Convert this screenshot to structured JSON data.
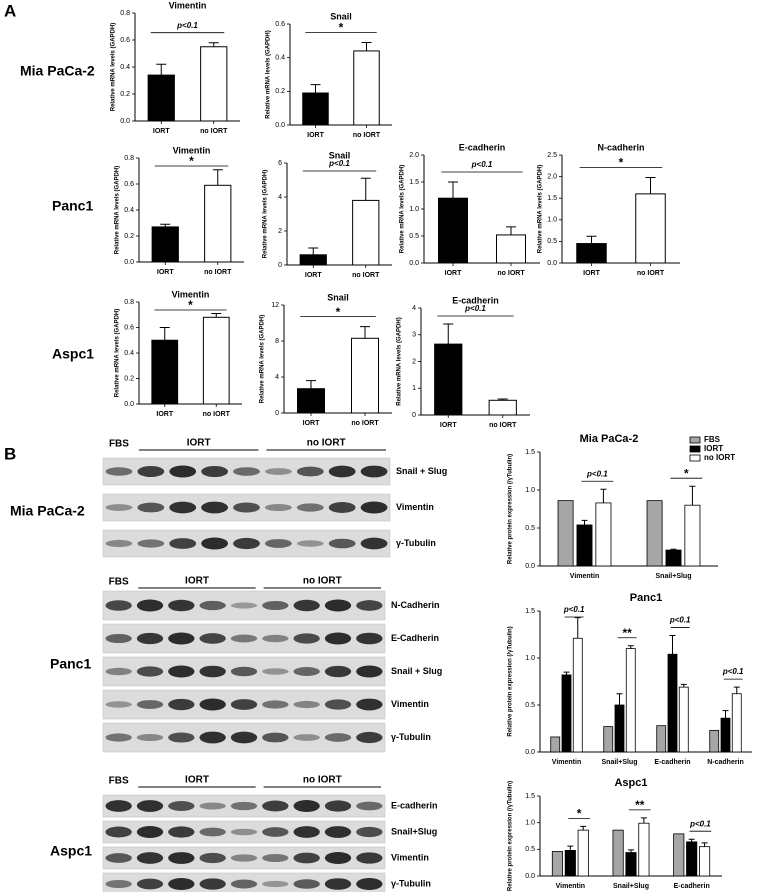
{
  "panel_a": {
    "label": "A",
    "rows": [
      "Mia PaCa-2",
      "Panc1",
      "Aspc1"
    ]
  },
  "panel_b": {
    "label": "B",
    "blots": [
      {
        "cell_line": "Mia PaCa-2",
        "fbs": "FBS",
        "groups": [
          "IORT",
          "no IORT"
        ],
        "bands": [
          "Snail + Slug",
          "Vimentin",
          "γ-Tubulin"
        ]
      },
      {
        "cell_line": "Panc1",
        "fbs": "FBS",
        "groups": [
          "IORT",
          "no IORT"
        ],
        "bands": [
          "N-Cadherin",
          "E-Cadherin",
          "Snail + Slug",
          "Vimentin",
          "γ-Tubulin"
        ]
      },
      {
        "cell_line": "Aspc1",
        "fbs": "FBS",
        "groups": [
          "IORT",
          "no IORT"
        ],
        "bands": [
          "E-cadherin",
          "Snail+Slug",
          "Vimentin",
          "γ-Tubulin"
        ]
      }
    ]
  },
  "chart_data": [
    {
      "type": "bar",
      "title": "Vimentin",
      "y_label": "Relative mRNA levels (GAPDH)",
      "categories": [
        "IORT",
        "no IORT"
      ],
      "values": [
        0.34,
        0.55
      ],
      "errors": [
        0.08,
        0.03
      ],
      "colors": [
        "#000000",
        "#ffffff"
      ],
      "annotation": "p<0.1",
      "ylim": [
        0,
        0.8
      ],
      "yticks": [
        {
          "value": 0,
          "label": "0.0"
        },
        0.2,
        0.4,
        0.6,
        0.8
      ]
    },
    {
      "type": "bar",
      "title": "Snail",
      "y_label": "Relative mRNA levels (GAPDH)",
      "categories": [
        "IORT",
        "no IORT"
      ],
      "values": [
        0.19,
        0.44
      ],
      "errors": [
        0.05,
        0.05
      ],
      "colors": [
        "#000000",
        "#ffffff"
      ],
      "annotation": "*",
      "ylim": [
        0,
        0.6
      ],
      "yticks": [
        {
          "value": 0,
          "label": "0.0"
        },
        0.2,
        0.4,
        0.6
      ]
    },
    {
      "type": "bar",
      "title": "Vimentin",
      "y_label": "Relative mRNA levels (GAPDH)",
      "categories": [
        "IORT",
        "no IORT"
      ],
      "values": [
        0.27,
        0.59
      ],
      "errors": [
        0.02,
        0.12
      ],
      "colors": [
        "#000000",
        "#ffffff"
      ],
      "annotation": "*",
      "ylim": [
        0,
        0.8
      ],
      "yticks": [
        {
          "value": 0,
          "label": "0.0"
        },
        0.2,
        0.4,
        0.6,
        0.8
      ]
    },
    {
      "type": "bar",
      "title": "Snail",
      "y_label": "Relative mRNA levels (GAPDH)",
      "categories": [
        "IORT",
        "no IORT"
      ],
      "values": [
        0.6,
        3.8
      ],
      "errors": [
        0.4,
        1.3
      ],
      "colors": [
        "#000000",
        "#ffffff"
      ],
      "annotation": "p<0.1",
      "ylim": [
        0,
        6
      ],
      "yticks": [
        0,
        2,
        4,
        6
      ]
    },
    {
      "type": "bar",
      "title": "E-cadherin",
      "y_label": "Relative mRNA levels (GAPDH)",
      "categories": [
        "IORT",
        "no IORT"
      ],
      "values": [
        1.2,
        0.52
      ],
      "errors": [
        0.3,
        0.15
      ],
      "colors": [
        "#000000",
        "#ffffff"
      ],
      "annotation": "p<0.1",
      "ylim": [
        0,
        2
      ],
      "yticks": [
        {
          "value": 0,
          "label": "0.0"
        },
        0.5,
        {
          "value": 1,
          "label": "1.0"
        },
        1.5,
        {
          "value": 2,
          "label": "2.0"
        }
      ]
    },
    {
      "type": "bar",
      "title": "N-cadherin",
      "y_label": "Relative mRNA levels (GAPDH)",
      "categories": [
        "IORT",
        "no IORT"
      ],
      "values": [
        0.45,
        1.6
      ],
      "errors": [
        0.17,
        0.38
      ],
      "colors": [
        "#000000",
        "#ffffff"
      ],
      "annotation": "*",
      "ylim": [
        0,
        2.5
      ],
      "yticks": [
        {
          "value": 0,
          "label": "0.0"
        },
        0.5,
        {
          "value": 1,
          "label": "1.0"
        },
        1.5,
        {
          "value": 2,
          "label": "2.0"
        },
        2.5
      ]
    },
    {
      "type": "bar",
      "title": "Vimentin",
      "y_label": "Relative mRNA levels (GAPDH)",
      "categories": [
        "IORT",
        "no IORT"
      ],
      "values": [
        0.5,
        0.68
      ],
      "errors": [
        0.1,
        0.03
      ],
      "colors": [
        "#000000",
        "#ffffff"
      ],
      "annotation": "*",
      "ylim": [
        0,
        0.8
      ],
      "yticks": [
        {
          "value": 0,
          "label": "0.0"
        },
        0.2,
        0.4,
        0.6,
        0.8
      ]
    },
    {
      "type": "bar",
      "title": "Snail",
      "y_label": "Relative mRNA levels (GAPDH)",
      "categories": [
        "IORT",
        "no IORT"
      ],
      "values": [
        2.7,
        8.3
      ],
      "errors": [
        0.9,
        1.3
      ],
      "colors": [
        "#000000",
        "#ffffff"
      ],
      "annotation": "*",
      "ylim": [
        0,
        12
      ],
      "yticks": [
        0,
        4,
        8,
        12
      ]
    },
    {
      "type": "bar",
      "title": "E-cadherin",
      "y_label": "Relative mRNA levels (GAPDH)",
      "categories": [
        "IORT",
        "no IORT"
      ],
      "values": [
        2.65,
        0.55
      ],
      "errors": [
        0.75,
        0.05
      ],
      "colors": [
        "#000000",
        "#ffffff"
      ],
      "annotation": "p<0.1",
      "ylim": [
        0,
        4
      ],
      "yticks": [
        0,
        1,
        2,
        3,
        4
      ]
    },
    {
      "type": "grouped_bar",
      "title": "Mia PaCa-2",
      "y_label": "Relative protein expression (/γTubulin)",
      "categories": [
        "Vimentin",
        "Snail+Slug"
      ],
      "series": [
        {
          "name": "FBS",
          "color": "#a6a6a6",
          "values": [
            0.86,
            0.86
          ]
        },
        {
          "name": "IORT",
          "color": "#000000",
          "values": [
            0.54,
            0.21
          ],
          "errors": [
            0.06,
            0.01
          ]
        },
        {
          "name": "no IORT",
          "color": "#ffffff",
          "values": [
            0.83,
            0.8
          ],
          "errors": [
            0.18,
            0.25
          ]
        }
      ],
      "annotations": [
        "p<0.1",
        "*"
      ],
      "ylim": [
        0,
        1.5
      ],
      "yticks": [
        {
          "value": 0,
          "label": "0.0"
        },
        0.5,
        {
          "value": 1,
          "label": "1.0"
        },
        1.5
      ],
      "legend": "top-right"
    },
    {
      "type": "grouped_bar",
      "title": "Panc1",
      "y_label": "Relative protein expression (/γTubulin)",
      "categories": [
        "Vimentin",
        "Snail+Slug",
        "E-cadherin",
        "N-cadherin"
      ],
      "series": [
        {
          "name": "FBS",
          "color": "#a6a6a6",
          "values": [
            0.16,
            0.27,
            0.28,
            0.23
          ]
        },
        {
          "name": "IORT",
          "color": "#000000",
          "values": [
            0.82,
            0.5,
            1.04,
            0.36
          ],
          "errors": [
            0.03,
            0.12,
            0.2,
            0.08
          ]
        },
        {
          "name": "no IORT",
          "color": "#ffffff",
          "values": [
            1.21,
            1.1,
            0.69,
            0.62
          ],
          "errors": [
            0.22,
            0.03,
            0.03,
            0.07
          ]
        }
      ],
      "annotations": [
        "p<0.1",
        "**",
        "p<0.1",
        "p<0.1"
      ],
      "ylim": [
        0,
        1.5
      ],
      "yticks": [
        {
          "value": 0,
          "label": "0.0"
        },
        0.5,
        {
          "value": 1,
          "label": "1.0"
        },
        1.5
      ]
    },
    {
      "type": "grouped_bar",
      "title": "Aspc1",
      "y_label": "Relative protein expression (/γTubulin)",
      "categories": [
        "Vimentin",
        "Snail+Slug",
        "E-cadherin"
      ],
      "series": [
        {
          "name": "FBS",
          "color": "#a6a6a6",
          "values": [
            0.46,
            0.86,
            0.79
          ]
        },
        {
          "name": "IORT",
          "color": "#000000",
          "values": [
            0.48,
            0.44,
            0.64
          ],
          "errors": [
            0.08,
            0.05,
            0.05
          ]
        },
        {
          "name": "no IORT",
          "color": "#ffffff",
          "values": [
            0.86,
            0.99,
            0.55
          ],
          "errors": [
            0.07,
            0.1,
            0.07
          ]
        }
      ],
      "annotations": [
        "*",
        "**",
        "p<0.1"
      ],
      "ylim": [
        0,
        1.5
      ],
      "yticks": [
        {
          "value": 0,
          "label": "0.0"
        },
        0.5,
        {
          "value": 1,
          "label": "1.0"
        },
        1.5
      ]
    }
  ]
}
